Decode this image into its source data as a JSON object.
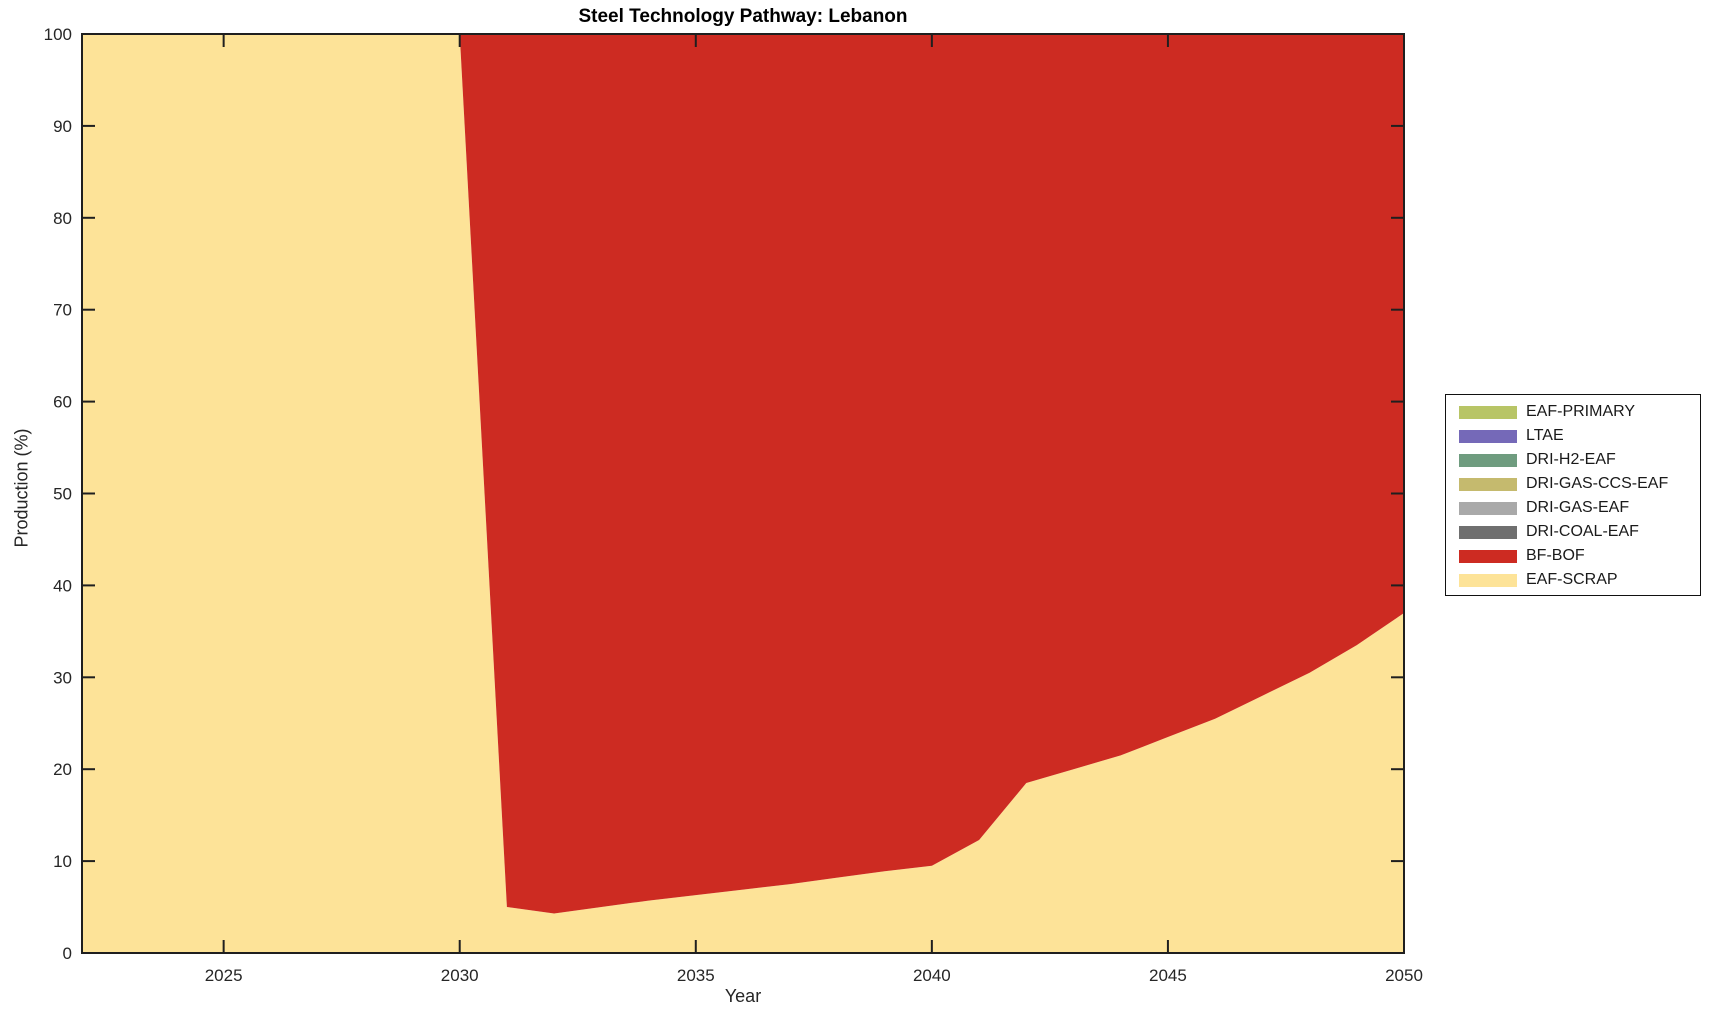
{
  "figure": {
    "background": "#ffffff",
    "axis_color": "#1f1f1f",
    "text_color": "#262626"
  },
  "chart_data": {
    "type": "area",
    "stacked": true,
    "title": "Steel Technology Pathway: Lebanon",
    "xlabel": "Year",
    "ylabel": "Production (%)",
    "xlim": [
      2022,
      2050
    ],
    "ylim": [
      0,
      100
    ],
    "xticks": [
      2025,
      2030,
      2035,
      2040,
      2045,
      2050
    ],
    "yticks": [
      0,
      10,
      20,
      30,
      40,
      50,
      60,
      70,
      80,
      90,
      100
    ],
    "grid": false,
    "x": [
      2022,
      2023,
      2024,
      2025,
      2026,
      2027,
      2028,
      2029,
      2030,
      2031,
      2032,
      2033,
      2034,
      2035,
      2036,
      2037,
      2038,
      2039,
      2040,
      2041,
      2042,
      2043,
      2044,
      2045,
      2046,
      2047,
      2048,
      2049,
      2050
    ],
    "series": [
      {
        "name": "EAF-SCRAP",
        "color": "#fde398",
        "values": [
          100,
          100,
          100,
          100,
          100,
          100,
          100,
          100,
          100,
          5.0,
          4.3,
          5.0,
          5.7,
          6.3,
          6.9,
          7.5,
          8.2,
          8.9,
          9.5,
          12.3,
          18.5,
          20.0,
          21.5,
          23.5,
          25.5,
          28.0,
          30.5,
          33.5,
          37.0
        ]
      },
      {
        "name": "BF-BOF",
        "color": "#cd2b22",
        "values": [
          0,
          0,
          0,
          0,
          0,
          0,
          0,
          0,
          0,
          95.0,
          95.7,
          95.0,
          94.3,
          93.7,
          93.1,
          92.5,
          91.8,
          91.1,
          90.5,
          87.7,
          81.5,
          80.0,
          78.5,
          76.5,
          74.5,
          72.0,
          69.5,
          66.5,
          63.0
        ]
      },
      {
        "name": "DRI-COAL-EAF",
        "color": "#6f6f6f",
        "values": [
          0,
          0,
          0,
          0,
          0,
          0,
          0,
          0,
          0,
          0,
          0,
          0,
          0,
          0,
          0,
          0,
          0,
          0,
          0,
          0,
          0,
          0,
          0,
          0,
          0,
          0,
          0,
          0,
          0
        ]
      },
      {
        "name": "DRI-GAS-EAF",
        "color": "#a9a9a9",
        "values": [
          0,
          0,
          0,
          0,
          0,
          0,
          0,
          0,
          0,
          0,
          0,
          0,
          0,
          0,
          0,
          0,
          0,
          0,
          0,
          0,
          0,
          0,
          0,
          0,
          0,
          0,
          0,
          0,
          0
        ]
      },
      {
        "name": "DRI-GAS-CCS-EAF",
        "color": "#c5ba6e",
        "values": [
          0,
          0,
          0,
          0,
          0,
          0,
          0,
          0,
          0,
          0,
          0,
          0,
          0,
          0,
          0,
          0,
          0,
          0,
          0,
          0,
          0,
          0,
          0,
          0,
          0,
          0,
          0,
          0,
          0
        ]
      },
      {
        "name": "DRI-H2-EAF",
        "color": "#6f9c7f",
        "values": [
          0,
          0,
          0,
          0,
          0,
          0,
          0,
          0,
          0,
          0,
          0,
          0,
          0,
          0,
          0,
          0,
          0,
          0,
          0,
          0,
          0,
          0,
          0,
          0,
          0,
          0,
          0,
          0,
          0
        ]
      },
      {
        "name": "LTAE",
        "color": "#7569b8",
        "values": [
          0,
          0,
          0,
          0,
          0,
          0,
          0,
          0,
          0,
          0,
          0,
          0,
          0,
          0,
          0,
          0,
          0,
          0,
          0,
          0,
          0,
          0,
          0,
          0,
          0,
          0,
          0,
          0,
          0
        ]
      },
      {
        "name": "EAF-PRIMARY",
        "color": "#b8c566",
        "values": [
          0,
          0,
          0,
          0,
          0,
          0,
          0,
          0,
          0,
          0,
          0,
          0,
          0,
          0,
          0,
          0,
          0,
          0,
          0,
          0,
          0,
          0,
          0,
          0,
          0,
          0,
          0,
          0,
          0
        ]
      }
    ],
    "legend": {
      "position": "right-outside",
      "items_top_to_bottom": [
        "EAF-PRIMARY",
        "LTAE",
        "DRI-H2-EAF",
        "DRI-GAS-CCS-EAF",
        "DRI-GAS-EAF",
        "DRI-COAL-EAF",
        "BF-BOF",
        "EAF-SCRAP"
      ]
    }
  }
}
